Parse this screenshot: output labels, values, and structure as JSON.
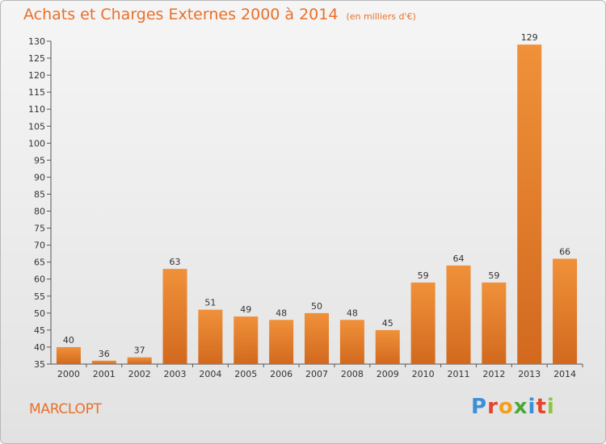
{
  "chart_data": {
    "type": "bar",
    "title": "Achats et Charges Externes 2000 à 2014",
    "unit_note": "(en milliers d'€)",
    "categories": [
      "2000",
      "2001",
      "2002",
      "2003",
      "2004",
      "2005",
      "2006",
      "2007",
      "2008",
      "2009",
      "2010",
      "2011",
      "2012",
      "2013",
      "2014"
    ],
    "values": [
      40,
      36,
      37,
      63,
      51,
      49,
      48,
      50,
      48,
      45,
      59,
      64,
      59,
      129,
      66
    ],
    "ylim": [
      35,
      130
    ],
    "yticks": [
      35,
      40,
      45,
      50,
      55,
      60,
      65,
      70,
      75,
      80,
      85,
      90,
      95,
      100,
      105,
      110,
      115,
      120,
      125,
      130
    ],
    "xlabel": "",
    "ylabel": "",
    "grid": false,
    "bar_color": "#f0913a",
    "bar_color_dark": "#d2691e"
  },
  "footer": {
    "town": "MARCLOPT",
    "brand_letters": [
      "P",
      "r",
      "o",
      "x",
      "i",
      "t",
      "i"
    ],
    "brand_colors": [
      "#3b8ed8",
      "#e5442b",
      "#f2a01c",
      "#4aa838",
      "#3b8ed8",
      "#e5442b",
      "#8cc63e"
    ]
  }
}
